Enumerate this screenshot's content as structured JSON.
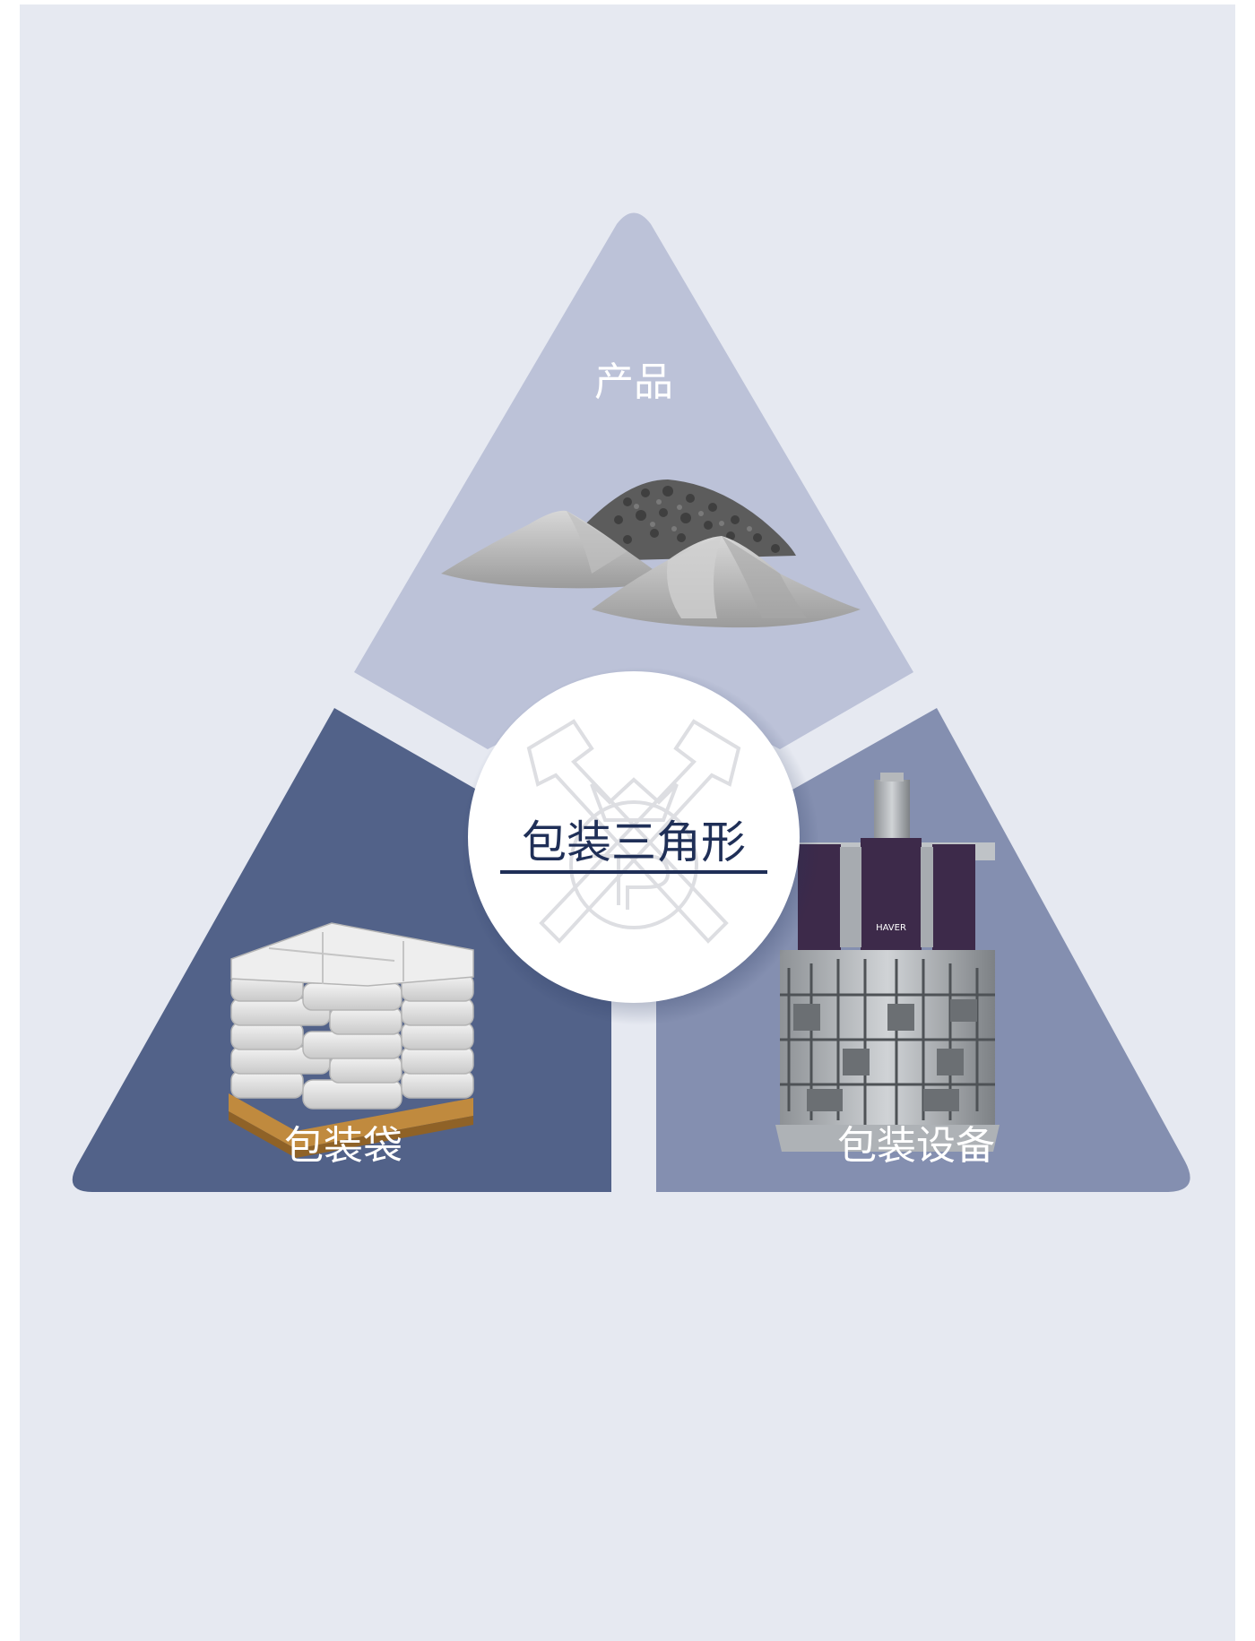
{
  "diagram": {
    "title": "包装三角形",
    "segments": [
      {
        "id": "top",
        "label": "产品",
        "icon": "material-piles-icon",
        "color": "#bcc2d8"
      },
      {
        "id": "left",
        "label": "包装袋",
        "icon": "bag-pallet-icon",
        "color": "#526289"
      },
      {
        "id": "right",
        "label": "包装设备",
        "icon": "packing-machine-icon",
        "color": "#848fb0"
      }
    ],
    "center": {
      "logo": "crossed-hammers-crown-logo",
      "underline_color": "#1f2f57"
    },
    "background_color": "#e6e9f1",
    "machine_brand": "HAVER"
  }
}
